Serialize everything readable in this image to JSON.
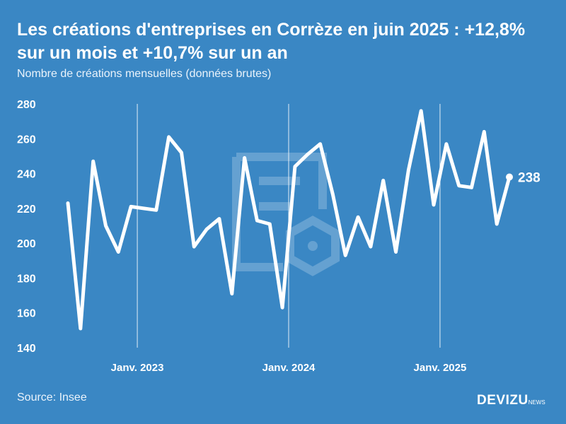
{
  "header": {
    "title": "Les créations d'entreprises en Corrèze en juin 2025 : +12,8% sur un mois et +10,7% sur un an",
    "subtitle": "Nombre de créations mensuelles (données brutes)"
  },
  "footer": {
    "source": "Source: Insee",
    "brand": "DEVIZU",
    "brand_sub": "NEWS"
  },
  "chart_data": {
    "type": "line",
    "x_start": "2022-07",
    "x": [
      "Juil. 2022",
      "Août 2022",
      "Sept. 2022",
      "Oct. 2022",
      "Nov. 2022",
      "Déc. 2022",
      "Janv. 2023",
      "Févr. 2023",
      "Mars 2023",
      "Avr. 2023",
      "Mai 2023",
      "Juin 2023",
      "Juil. 2023",
      "Août 2023",
      "Sept. 2023",
      "Oct. 2023",
      "Nov. 2023",
      "Déc. 2023",
      "Janv. 2024",
      "Févr. 2024",
      "Mars 2024",
      "Avr. 2024",
      "Mai 2024",
      "Juin 2024",
      "Juil. 2024",
      "Août 2024",
      "Sept. 2024",
      "Oct. 2024",
      "Nov. 2024",
      "Déc. 2024",
      "Janv. 2025",
      "Févr. 2025",
      "Mars 2025",
      "Avr. 2025",
      "Mai 2025",
      "Juin 2025"
    ],
    "series": [
      {
        "values": [
          223,
          151,
          247,
          210,
          195,
          221,
          220,
          219,
          261,
          252,
          198,
          208,
          214,
          171,
          249,
          213,
          211,
          163,
          244,
          251,
          257,
          228,
          193,
          215,
          198,
          236,
          195,
          242,
          276,
          222,
          257,
          233,
          232,
          264,
          211,
          238
        ]
      }
    ],
    "y_ticks": [
      140,
      160,
      180,
      200,
      220,
      240,
      260,
      280
    ],
    "ylim": [
      140,
      280
    ],
    "x_tick_labels": [
      {
        "label": "Janv. 2023",
        "index": 6
      },
      {
        "label": "Janv. 2024",
        "index": 18
      },
      {
        "label": "Janv. 2025",
        "index": 30
      }
    ],
    "end_label": "238",
    "line_color": "#ffffff",
    "background_color": "#3a87c4",
    "grid": false
  }
}
